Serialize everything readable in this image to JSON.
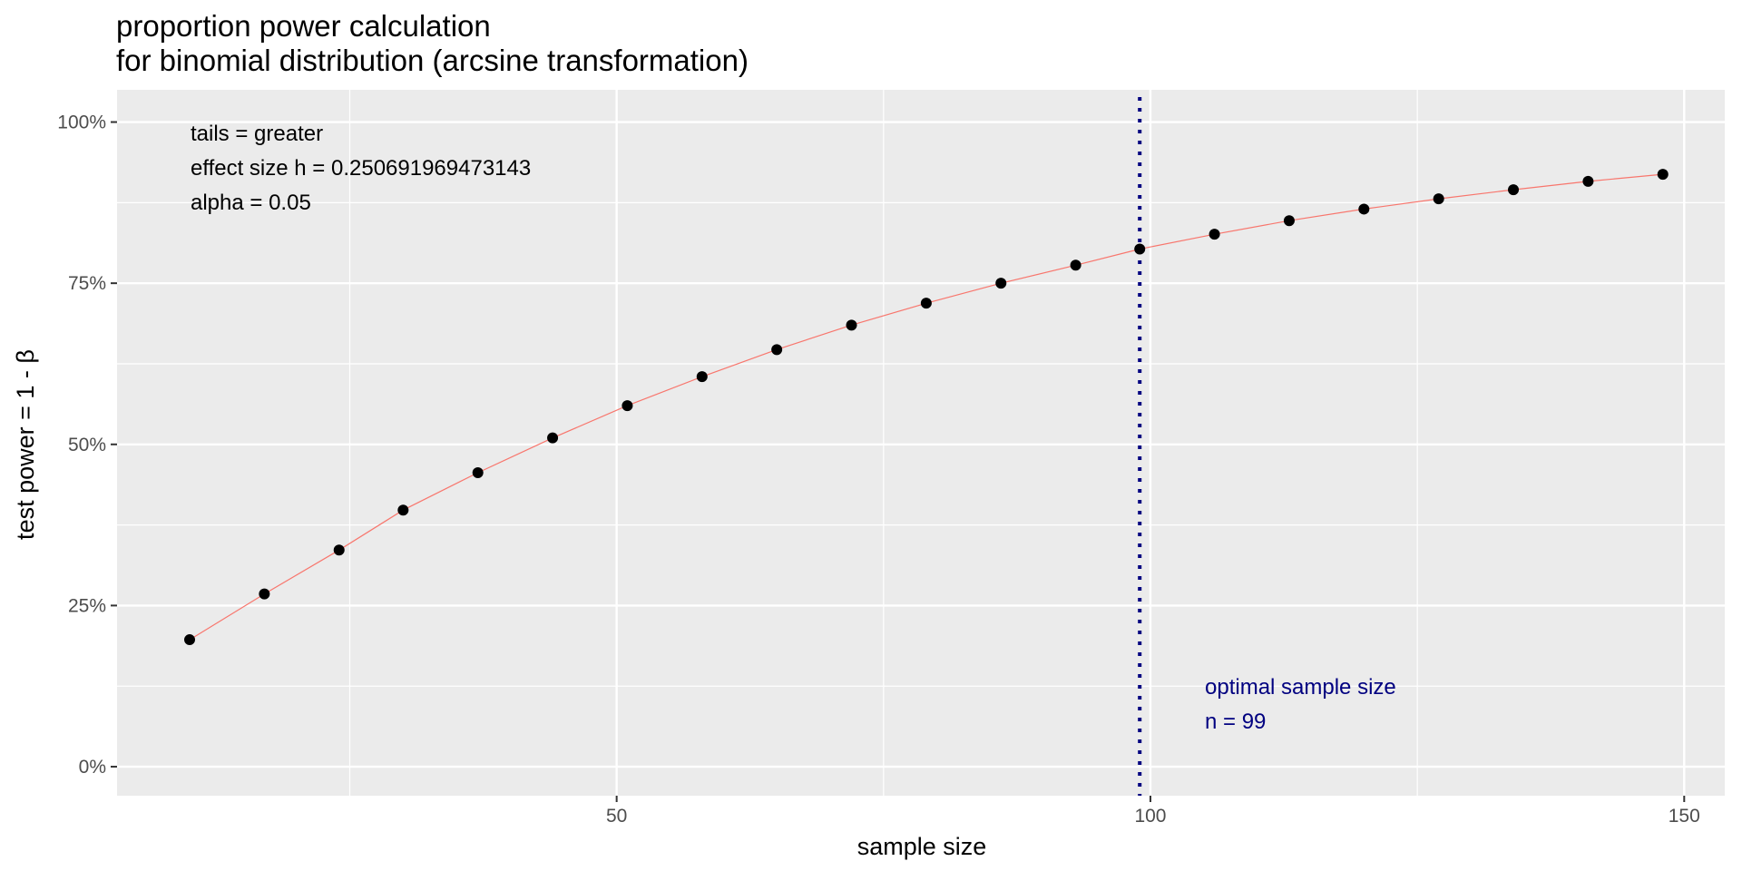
{
  "chart_data": {
    "type": "line",
    "title": "proportion power calculation",
    "subtitle": "for binomial distribution (arcsine transformation)",
    "xlabel": "sample size",
    "ylabel": "test power = 1 - β",
    "xlim": [
      3.2,
      153.8
    ],
    "ylim": [
      -0.045,
      1.05
    ],
    "x_ticks": [
      50,
      100,
      150
    ],
    "x_tick_labels": [
      "50",
      "100",
      "150"
    ],
    "y_ticks": [
      0,
      0.25,
      0.5,
      0.75,
      1.0
    ],
    "y_tick_labels": [
      "0%",
      "25%",
      "50%",
      "75%",
      "100%"
    ],
    "grid": true,
    "series": [
      {
        "color": "#F8766D",
        "points_color": "#000000",
        "x": [
          10,
          17,
          24,
          30,
          37,
          44,
          51,
          58,
          65,
          72,
          79,
          86,
          93,
          99,
          106,
          113,
          120,
          127,
          134,
          141,
          148
        ],
        "y": [
          0.197,
          0.268,
          0.336,
          0.398,
          0.456,
          0.51,
          0.56,
          0.605,
          0.647,
          0.685,
          0.719,
          0.75,
          0.778,
          0.803,
          0.826,
          0.847,
          0.865,
          0.881,
          0.895,
          0.908,
          0.919
        ]
      }
    ],
    "vline": {
      "x": 99,
      "color": "#000080",
      "style": "dotted"
    },
    "annotations": [
      {
        "lines": [
          "tails = greater",
          "effect size h = 0.250691969473143",
          "alpha = 0.05"
        ],
        "color": "#000000",
        "position": "top-left"
      },
      {
        "lines": [
          "optimal sample size",
          "n = 99"
        ],
        "color": "#000080",
        "position": "bottom-right"
      }
    ]
  }
}
